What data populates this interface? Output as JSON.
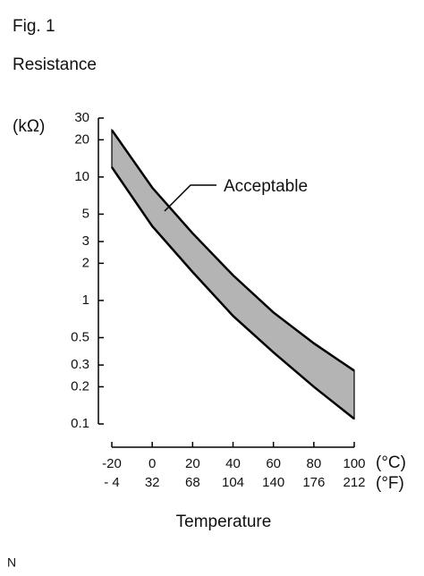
{
  "chart_data": {
    "type": "band",
    "figure_label": "Fig. 1",
    "title": "Resistance",
    "y_unit": "(kΩ)",
    "x_unit": "(°C)",
    "x2_unit": "(°F)",
    "xlabel": "Temperature",
    "annotation": "Acceptable",
    "footnote": "N",
    "log_y": true,
    "color": "#b4b4b4",
    "line_color": "#000000",
    "x": [
      -20,
      0,
      20,
      40,
      60,
      80,
      100
    ],
    "series": [
      {
        "values": [
          24,
          8.2,
          3.5,
          1.6,
          0.8,
          0.45,
          0.27
        ]
      },
      {
        "values": [
          12,
          4.0,
          1.7,
          0.75,
          0.38,
          0.2,
          0.11
        ]
      }
    ],
    "xlim": [
      -20,
      100
    ],
    "xticks": [
      -20,
      0,
      20,
      40,
      60,
      80,
      100
    ],
    "fahrenheit_labels": [
      "- 4",
      "32",
      "68",
      "104",
      "140",
      "176",
      "212"
    ],
    "ylim": [
      0.1,
      30
    ],
    "yticks": [
      0.1,
      0.2,
      0.3,
      0.5,
      1,
      2,
      3,
      5,
      10,
      20,
      30
    ]
  }
}
